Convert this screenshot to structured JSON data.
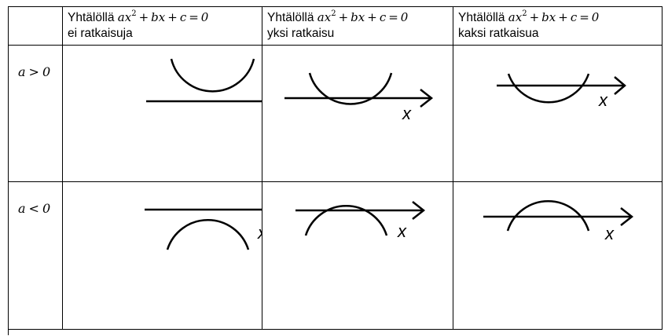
{
  "header": {
    "corner": "",
    "prefix": "Yhtälöllä",
    "equation": {
      "a": "a",
      "x": "x",
      "exp": "2",
      "plus1": "+",
      "b": "b",
      "x2": "x",
      "plus2": "+",
      "c": "c",
      "eq": "=",
      "zero": "0"
    },
    "columns": [
      "ei ratkaisuja",
      "yksi ratkaisu",
      "kaksi ratkaisua"
    ]
  },
  "rows": [
    {
      "var": "a",
      "rel": ">",
      "val": "0"
    },
    {
      "var": "a",
      "rel": "<",
      "val": "0"
    }
  ],
  "axis_label": "x",
  "colors": {
    "line": "#000000",
    "border": "#000000",
    "background": "#ffffff"
  }
}
